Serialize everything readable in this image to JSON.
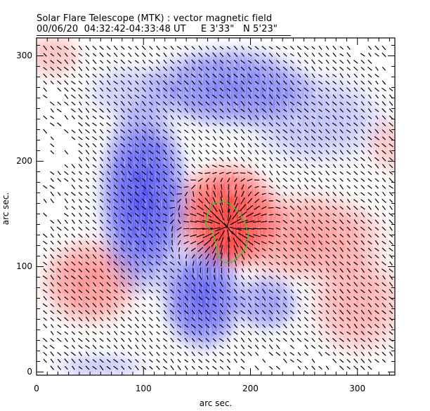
{
  "title": {
    "line1": "Solar Flare Telescope (MTK) : vector magnetic field",
    "line2": "00/06/20  04:32:42-04:33:48 UT     E 3'33\"   N 5'23\""
  },
  "chart_data": {
    "type": "heatmap",
    "subtype": "vector magnetogram (longitudinal field color map with transverse field vectors)",
    "title": "Solar Flare Telescope (MTK) : vector magnetic field",
    "subtitle": "00/06/20  04:32:42-04:33:48 UT     E 3'33\"   N 5'23\"",
    "xlabel": "arc sec.",
    "ylabel": "arc sec.",
    "xlim": [
      0,
      335
    ],
    "ylim": [
      -3,
      317
    ],
    "xticks": [
      0,
      100,
      200,
      300
    ],
    "yticks": [
      0,
      100,
      200,
      300
    ],
    "minor_tick_step": 10,
    "colormap": {
      "positive": "#ff3333",
      "negative": "#3333ee",
      "zero": "#ffffff"
    },
    "polarity_regions": [
      {
        "polarity": "positive",
        "label": "central spot",
        "center": [
          178,
          148
        ],
        "radius": [
          45,
          45
        ],
        "strength": 1.0
      },
      {
        "polarity": "positive",
        "label": "spot core",
        "center": [
          178,
          132
        ],
        "radius": [
          22,
          28
        ],
        "strength": 1.0
      },
      {
        "polarity": "positive",
        "label": "west plage",
        "center": [
          250,
          128
        ],
        "radius": [
          70,
          38
        ],
        "strength": 0.55
      },
      {
        "polarity": "positive",
        "label": "east plage",
        "center": [
          50,
          85
        ],
        "radius": [
          42,
          38
        ],
        "strength": 0.6
      },
      {
        "polarity": "positive",
        "label": "south-east plage",
        "center": [
          300,
          65
        ],
        "radius": [
          40,
          45
        ],
        "strength": 0.45
      },
      {
        "polarity": "positive",
        "label": "north-west patch",
        "center": [
          15,
          300
        ],
        "radius": [
          25,
          20
        ],
        "strength": 0.35
      },
      {
        "polarity": "positive",
        "label": "north-east patch",
        "center": [
          330,
          215
        ],
        "radius": [
          20,
          25
        ],
        "strength": 0.3
      },
      {
        "polarity": "negative",
        "label": "main negative band",
        "center": [
          100,
          165
        ],
        "radius": [
          38,
          80
        ],
        "strength": 0.95
      },
      {
        "polarity": "negative",
        "label": "negative lower band",
        "center": [
          155,
          70
        ],
        "radius": [
          35,
          45
        ],
        "strength": 0.85
      },
      {
        "polarity": "negative",
        "label": "north negative",
        "center": [
          180,
          270
        ],
        "radius": [
          70,
          35
        ],
        "strength": 0.7
      },
      {
        "polarity": "negative",
        "label": "north-east faint",
        "center": [
          260,
          240
        ],
        "radius": [
          60,
          40
        ],
        "strength": 0.35
      },
      {
        "polarity": "negative",
        "label": "central-south",
        "center": [
          215,
          65
        ],
        "radius": [
          28,
          25
        ],
        "strength": 0.55
      },
      {
        "polarity": "negative",
        "label": "north-west faint",
        "center": [
          90,
          265
        ],
        "radius": [
          40,
          25
        ],
        "strength": 0.3
      },
      {
        "polarity": "negative",
        "label": "bottom faint",
        "center": [
          60,
          5
        ],
        "radius": [
          40,
          12
        ],
        "strength": 0.3
      }
    ],
    "vector_field": {
      "grid_step_arcsec": 6.6,
      "dominant_direction": "northwest-southeast",
      "description": "Transverse field vectors (short line segments) on a regular grid; mostly oriented NW-SE, radially divergent around the positive spot at ~(178,140), suppressed in weak-field regions."
    },
    "contour": {
      "color": "#33cc33",
      "label": "green contour around positive spot",
      "points": [
        [
          160,
          150
        ],
        [
          165,
          160
        ],
        [
          175,
          162
        ],
        [
          183,
          158
        ],
        [
          190,
          150
        ],
        [
          195,
          142
        ],
        [
          198,
          130
        ],
        [
          196,
          118
        ],
        [
          190,
          110
        ],
        [
          182,
          104
        ],
        [
          175,
          104
        ],
        [
          170,
          110
        ],
        [
          168,
          120
        ],
        [
          165,
          132
        ],
        [
          158,
          140
        ],
        [
          160,
          150
        ]
      ]
    }
  }
}
